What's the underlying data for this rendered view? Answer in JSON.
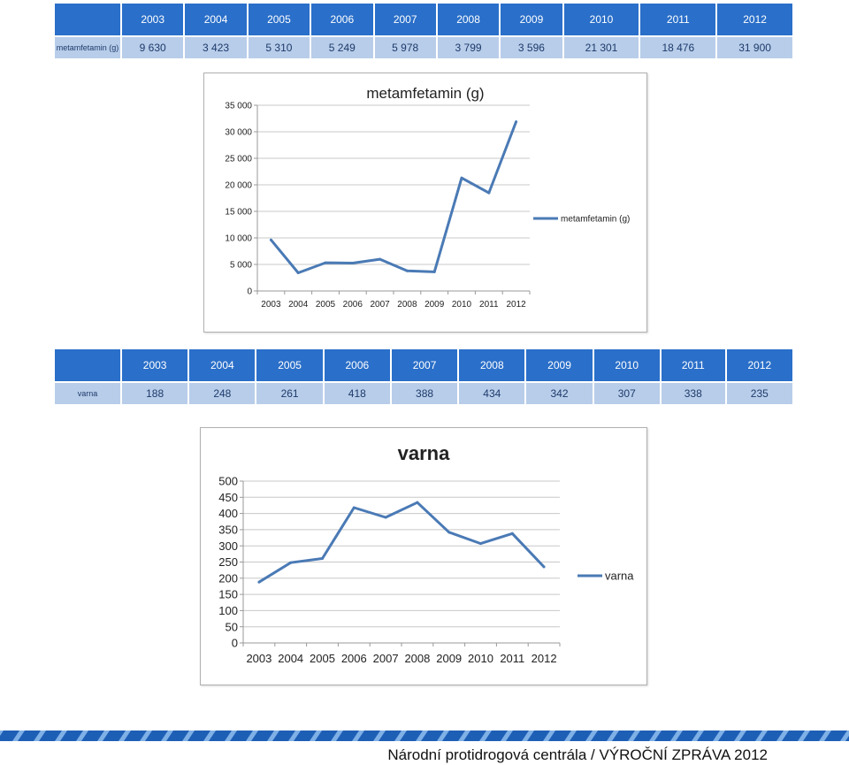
{
  "table1": {
    "row_label": "metamfetamin (g)",
    "years": [
      "2003",
      "2004",
      "2005",
      "2006",
      "2007",
      "2008",
      "2009",
      "2010",
      "2011",
      "2012"
    ],
    "values": [
      "9 630",
      "3 423",
      "5 310",
      "5 249",
      "5 978",
      "3 799",
      "3 596",
      "21 301",
      "18 476",
      "31 900"
    ]
  },
  "table2": {
    "row_label": "varna",
    "years": [
      "2003",
      "2004",
      "2005",
      "2006",
      "2007",
      "2008",
      "2009",
      "2010",
      "2011",
      "2012"
    ],
    "values": [
      "188",
      "248",
      "261",
      "418",
      "388",
      "434",
      "342",
      "307",
      "338",
      "235"
    ]
  },
  "chart_data": [
    {
      "type": "line",
      "title": "metamfetamin (g)",
      "categories": [
        "2003",
        "2004",
        "2005",
        "2006",
        "2007",
        "2008",
        "2009",
        "2010",
        "2011",
        "2012"
      ],
      "series": [
        {
          "name": "metamfetamin (g)",
          "values": [
            9630,
            3423,
            5310,
            5249,
            5978,
            3799,
            3596,
            21301,
            18476,
            31900
          ]
        }
      ],
      "ylim": [
        0,
        35000
      ],
      "yticks": [
        0,
        5000,
        10000,
        15000,
        20000,
        25000,
        30000,
        35000
      ],
      "ytick_labels": [
        "0",
        "5 000",
        "10 000",
        "15 000",
        "20 000",
        "25 000",
        "30 000",
        "35 000"
      ],
      "legend": "right",
      "color": "#4a7ab5"
    },
    {
      "type": "line",
      "title": "varna",
      "categories": [
        "2003",
        "2004",
        "2005",
        "2006",
        "2007",
        "2008",
        "2009",
        "2010",
        "2011",
        "2012"
      ],
      "series": [
        {
          "name": "varna",
          "values": [
            188,
            248,
            261,
            418,
            388,
            434,
            342,
            307,
            338,
            235
          ]
        }
      ],
      "ylim": [
        0,
        500
      ],
      "yticks": [
        0,
        50,
        100,
        150,
        200,
        250,
        300,
        350,
        400,
        450,
        500
      ],
      "ytick_labels": [
        "0",
        "50",
        "100",
        "150",
        "200",
        "250",
        "300",
        "350",
        "400",
        "450",
        "500"
      ],
      "legend": "right",
      "color": "#4a7ab5"
    }
  ],
  "footer": {
    "text": "Národní protidrogová centrála / VÝROČNÍ ZPRÁVA 2012"
  }
}
